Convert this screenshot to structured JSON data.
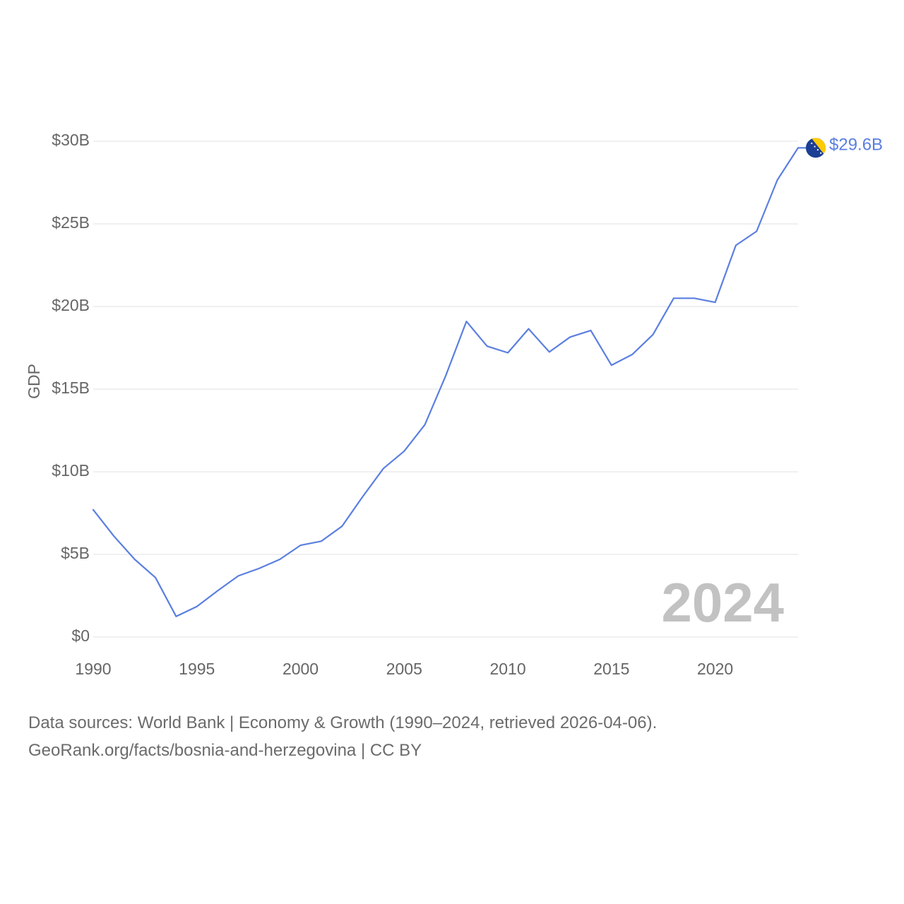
{
  "chart_data": {
    "type": "line",
    "ylabel": "GDP",
    "ylim": [
      0,
      30
    ],
    "yticks": [
      0,
      5,
      10,
      15,
      20,
      25,
      30
    ],
    "ytick_labels": [
      "$0",
      "$5B",
      "$10B",
      "$15B",
      "$20B",
      "$25B",
      "$30B"
    ],
    "xlim": [
      1990,
      2024
    ],
    "xticks": [
      1990,
      1995,
      2000,
      2005,
      2010,
      2015,
      2020
    ],
    "xtick_labels": [
      "1990",
      "1995",
      "2000",
      "2005",
      "2010",
      "2015",
      "2020"
    ],
    "series": [
      {
        "name": "Bosnia and Herzegovina",
        "color": "#5b7fe0",
        "x": [
          1990,
          1991,
          1992,
          1993,
          1994,
          1995,
          1996,
          1997,
          1998,
          1999,
          2000,
          2001,
          2002,
          2003,
          2004,
          2005,
          2006,
          2007,
          2008,
          2009,
          2010,
          2011,
          2012,
          2013,
          2014,
          2015,
          2016,
          2017,
          2018,
          2019,
          2020,
          2021,
          2022,
          2023,
          2024
        ],
        "values": [
          7.7,
          6.1,
          4.7,
          3.6,
          1.25,
          1.85,
          2.8,
          3.7,
          4.15,
          4.7,
          5.55,
          5.8,
          6.7,
          8.5,
          10.2,
          11.25,
          12.85,
          15.8,
          19.1,
          17.6,
          17.2,
          18.65,
          17.25,
          18.15,
          18.55,
          16.45,
          17.1,
          18.3,
          20.5,
          20.5,
          20.25,
          23.7,
          24.55,
          27.65,
          29.6
        ]
      }
    ],
    "end_label": "$29.6B",
    "year_label": "2024",
    "flag_colors": {
      "blue": "#1c3f94",
      "yellow": "#fecb00",
      "stars": "#ffffff"
    }
  },
  "footer": {
    "line1": "Data sources: World Bank | Economy & Growth (1990–2024, retrieved 2026-04-06).",
    "line2": "GeoRank.org/facts/bosnia-and-herzegovina | CC BY"
  }
}
